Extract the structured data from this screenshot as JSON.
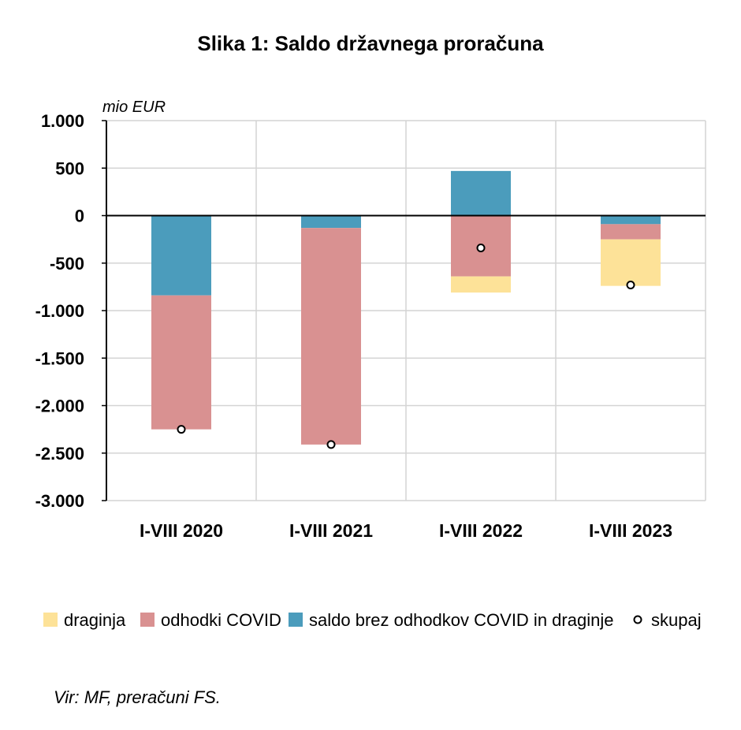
{
  "chart_data": {
    "type": "bar",
    "stacked": true,
    "title": "Slika 1: Saldo državnega proračuna",
    "ylabel": "mio EUR",
    "ylim": [
      -3000,
      1000
    ],
    "yticks": [
      1000,
      500,
      0,
      -500,
      -1000,
      -1500,
      -2000,
      -2500,
      -3000
    ],
    "ytick_labels": [
      "1.000",
      "500",
      "0",
      "-500",
      "-1.000",
      "-1.500",
      "-2.000",
      "-2.500",
      "-3.000"
    ],
    "categories": [
      "I-VIII 2020",
      "I-VIII 2021",
      "I-VIII 2022",
      "I-VIII 2023"
    ],
    "series": [
      {
        "name": "saldo brez odhodkov COVID in draginje",
        "color": "#4b9cbc",
        "values": [
          -840,
          -130,
          470,
          -90
        ]
      },
      {
        "name": "odhodki COVID",
        "color": "#d99191",
        "values": [
          -1410,
          -2280,
          -640,
          -160
        ]
      },
      {
        "name": "draginja",
        "color": "#fde298",
        "values": [
          0,
          0,
          -170,
          -490
        ]
      }
    ],
    "total": {
      "name": "skupaj",
      "values": [
        -2250,
        -2410,
        -340,
        -730
      ]
    },
    "legend_order": [
      "draginja",
      "odhodki COVID",
      "saldo brez odhodkov COVID in draginje",
      "skupaj"
    ],
    "legend_position": "bottom",
    "grid": true
  },
  "source_note": "Vir: MF, preračuni FS."
}
